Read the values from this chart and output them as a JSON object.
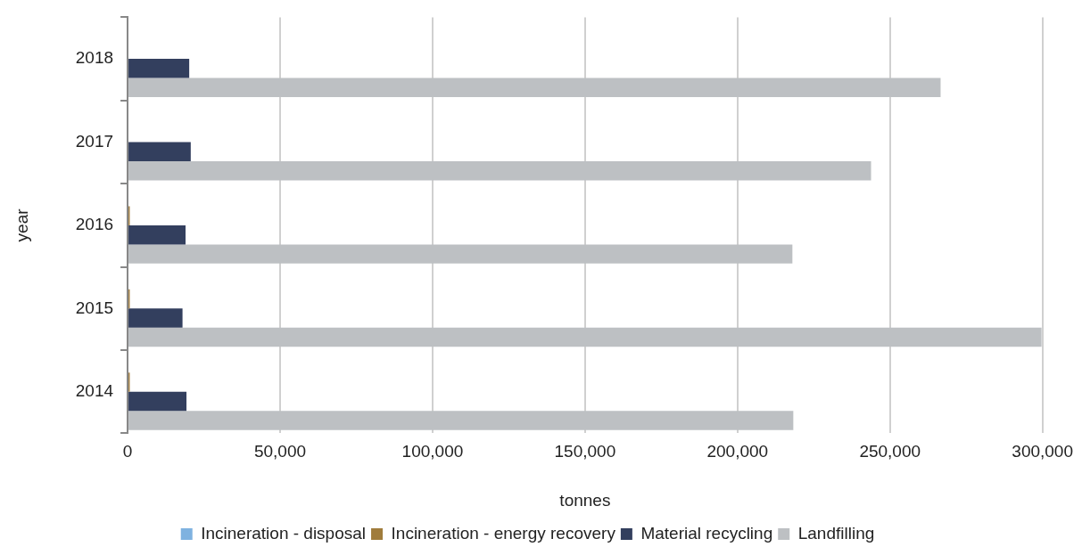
{
  "chart_data": {
    "type": "bar",
    "orientation": "horizontal",
    "xlabel": "tonnes",
    "ylabel": "year",
    "categories": [
      "2018",
      "2017",
      "2016",
      "2015",
      "2014"
    ],
    "series": [
      {
        "name": "Incineration - disposal",
        "color": "#7fb2e0",
        "values": [
          0,
          0,
          0,
          0,
          0
        ]
      },
      {
        "name": "Incineration - energy recovery",
        "color": "#a07c3c",
        "values": [
          0,
          0,
          700,
          700,
          700
        ]
      },
      {
        "name": "Material recycling",
        "color": "#333f5e",
        "values": [
          20200,
          20700,
          19000,
          18000,
          19300
        ]
      },
      {
        "name": "Landfilling",
        "color": "#bdc0c3",
        "values": [
          266600,
          243800,
          218000,
          299700,
          218300
        ]
      }
    ],
    "xlim": [
      0,
      300000
    ],
    "xticks": [
      0,
      {
        "value": 50000,
        "label": "50,000"
      },
      {
        "value": 100000,
        "label": "100,000"
      },
      {
        "value": 150000,
        "label": "150,000"
      },
      {
        "value": 200000,
        "label": "200,000"
      },
      {
        "value": 250000,
        "label": "250,000"
      },
      {
        "value": 300000,
        "label": "300,000"
      }
    ],
    "grid": "x",
    "legend": "bottom"
  }
}
